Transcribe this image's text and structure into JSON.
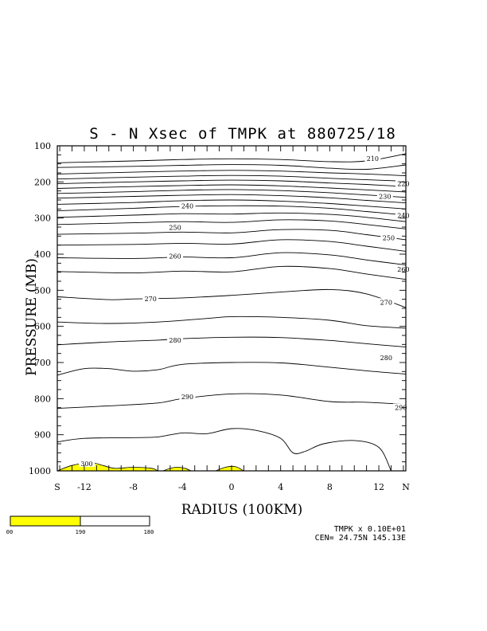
{
  "chart_data": {
    "type": "contour",
    "title": "S - N Xsec of TMPK at 880725/18",
    "xlabel": "RADIUS (100KM)",
    "ylabel": "PRESSURE (MB)",
    "xlim": [
      -14.2,
      14.2
    ],
    "ylim": [
      1000,
      100
    ],
    "y_ticks": [
      100,
      200,
      300,
      400,
      500,
      600,
      700,
      800,
      900,
      1000
    ],
    "x_ticks": [
      {
        "x": -14.2,
        "label": "S"
      },
      {
        "x": -12,
        "label": "-12"
      },
      {
        "x": -8,
        "label": "-8"
      },
      {
        "x": -4,
        "label": "-4"
      },
      {
        "x": 0,
        "label": "0"
      },
      {
        "x": 4,
        "label": "4"
      },
      {
        "x": 8,
        "label": "8"
      },
      {
        "x": 12,
        "label": "12"
      },
      {
        "x": 14.2,
        "label": "N"
      }
    ],
    "contours": [
      {
        "points": [
          [
            -14.2,
            147
          ],
          [
            -8,
            142
          ],
          [
            -4,
            138
          ],
          [
            0,
            136
          ],
          [
            4,
            138
          ],
          [
            8,
            144
          ],
          [
            11,
            142
          ],
          [
            14.2,
            122
          ]
        ]
      },
      {
        "points": [
          [
            -14.2,
            160
          ],
          [
            -8,
            157
          ],
          [
            -4,
            154
          ],
          [
            0,
            152
          ],
          [
            4,
            154
          ],
          [
            8,
            162
          ],
          [
            11,
            165
          ],
          [
            14.2,
            153
          ]
        ]
      },
      {
        "points": [
          [
            -14.2,
            178
          ],
          [
            -8,
            173
          ],
          [
            -4,
            170
          ],
          [
            0,
            168
          ],
          [
            4,
            170
          ],
          [
            8,
            175
          ],
          [
            11,
            178
          ],
          [
            14.2,
            183
          ]
        ]
      },
      {
        "points": [
          [
            -14.2,
            192
          ],
          [
            -8,
            187
          ],
          [
            -4,
            184
          ],
          [
            0,
            182
          ],
          [
            4,
            184
          ],
          [
            8,
            190
          ],
          [
            11,
            194
          ],
          [
            14.2,
            198
          ]
        ]
      },
      {
        "points": [
          [
            -14.2,
            205
          ],
          [
            -8,
            200
          ],
          [
            -4,
            197
          ],
          [
            0,
            195
          ],
          [
            4,
            197
          ],
          [
            8,
            203
          ],
          [
            11,
            207
          ],
          [
            14.2,
            213
          ]
        ]
      },
      {
        "points": [
          [
            -14.2,
            218
          ],
          [
            -8,
            213
          ],
          [
            -4,
            210
          ],
          [
            0,
            208
          ],
          [
            4,
            211
          ],
          [
            8,
            217
          ],
          [
            11,
            222
          ],
          [
            14.2,
            228
          ]
        ]
      },
      {
        "points": [
          [
            -14.2,
            232
          ],
          [
            -8,
            227
          ],
          [
            -4,
            223
          ],
          [
            0,
            221
          ],
          [
            4,
            224
          ],
          [
            8,
            230
          ],
          [
            11,
            236
          ],
          [
            14.2,
            243
          ]
        ]
      },
      {
        "points": [
          [
            -14.2,
            245
          ],
          [
            -8,
            240
          ],
          [
            -4,
            237
          ],
          [
            0,
            235
          ],
          [
            4,
            238
          ],
          [
            8,
            244
          ],
          [
            11,
            251
          ],
          [
            14.2,
            258
          ]
        ]
      },
      {
        "points": [
          [
            -14.2,
            262
          ],
          [
            -8,
            257
          ],
          [
            -4,
            252
          ],
          [
            0,
            250
          ],
          [
            4,
            253
          ],
          [
            8,
            260
          ],
          [
            11,
            267
          ],
          [
            14.2,
            275
          ]
        ]
      },
      {
        "points": [
          [
            -14.2,
            280
          ],
          [
            -8,
            273
          ],
          [
            -4,
            268
          ],
          [
            0,
            266
          ],
          [
            4,
            267
          ],
          [
            8,
            273
          ],
          [
            11,
            282
          ],
          [
            14.2,
            292
          ]
        ]
      },
      {
        "points": [
          [
            -14.2,
            298
          ],
          [
            -8,
            292
          ],
          [
            -4,
            288
          ],
          [
            0,
            289
          ],
          [
            4,
            286
          ],
          [
            8,
            290
          ],
          [
            11,
            298
          ],
          [
            14.2,
            310
          ]
        ]
      },
      {
        "points": [
          [
            -14.2,
            318
          ],
          [
            -8,
            313
          ],
          [
            -4,
            310
          ],
          [
            0,
            312
          ],
          [
            4,
            305
          ],
          [
            8,
            308
          ],
          [
            11,
            318
          ],
          [
            14.2,
            330
          ]
        ]
      },
      {
        "points": [
          [
            -14.2,
            345
          ],
          [
            -8,
            342
          ],
          [
            -4,
            339
          ],
          [
            0,
            341
          ],
          [
            4,
            332
          ],
          [
            8,
            334
          ],
          [
            11,
            346
          ],
          [
            14.2,
            360
          ]
        ]
      },
      {
        "points": [
          [
            -14.2,
            375
          ],
          [
            -8,
            373
          ],
          [
            -4,
            370
          ],
          [
            0,
            372
          ],
          [
            4,
            360
          ],
          [
            8,
            365
          ],
          [
            11,
            378
          ],
          [
            14.2,
            392
          ]
        ]
      },
      {
        "points": [
          [
            -14.2,
            410
          ],
          [
            -8,
            412
          ],
          [
            -4,
            408
          ],
          [
            0,
            410
          ],
          [
            4,
            396
          ],
          [
            8,
            402
          ],
          [
            11,
            416
          ],
          [
            14.2,
            430
          ]
        ]
      },
      {
        "points": [
          [
            -14.2,
            448
          ],
          [
            -8,
            452
          ],
          [
            -4,
            447
          ],
          [
            0,
            449
          ],
          [
            4,
            434
          ],
          [
            8,
            440
          ],
          [
            11,
            455
          ],
          [
            14.2,
            470
          ]
        ]
      },
      {
        "points": [
          [
            -14.2,
            518
          ],
          [
            -10,
            526
          ],
          [
            -8,
            524
          ],
          [
            -4,
            521
          ],
          [
            0,
            514
          ],
          [
            4,
            505
          ],
          [
            8,
            498
          ],
          [
            11,
            510
          ],
          [
            14.2,
            548
          ]
        ]
      },
      {
        "points": [
          [
            -14.2,
            588
          ],
          [
            -10,
            592
          ],
          [
            -6,
            588
          ],
          [
            -2,
            578
          ],
          [
            0,
            573
          ],
          [
            4,
            575
          ],
          [
            8,
            583
          ],
          [
            11,
            598
          ],
          [
            14.2,
            605
          ]
        ]
      },
      {
        "points": [
          [
            -14.2,
            651
          ],
          [
            -10,
            643
          ],
          [
            -6,
            638
          ],
          [
            -4,
            634
          ],
          [
            0,
            630
          ],
          [
            4,
            631
          ],
          [
            8,
            639
          ],
          [
            11,
            648
          ],
          [
            14.2,
            657
          ]
        ]
      },
      {
        "points": [
          [
            -14.2,
            735
          ],
          [
            -12,
            717
          ],
          [
            -10,
            717
          ],
          [
            -8,
            724
          ],
          [
            -6,
            720
          ],
          [
            -4,
            705
          ],
          [
            0,
            700
          ],
          [
            4,
            701
          ],
          [
            8,
            713
          ],
          [
            11,
            723
          ],
          [
            14.2,
            732
          ]
        ]
      },
      {
        "points": [
          [
            -14.2,
            827
          ],
          [
            -10,
            820
          ],
          [
            -6,
            812
          ],
          [
            -4,
            800
          ],
          [
            0,
            787
          ],
          [
            4,
            790
          ],
          [
            8,
            808
          ],
          [
            11,
            810
          ],
          [
            14.2,
            816
          ]
        ]
      },
      {
        "points": [
          [
            -14.2,
            920
          ],
          [
            -12,
            910
          ],
          [
            -8,
            908
          ],
          [
            -6,
            906
          ],
          [
            -4,
            895
          ],
          [
            -2,
            897
          ],
          [
            0,
            883
          ],
          [
            2,
            888
          ],
          [
            4,
            910
          ],
          [
            5,
            950
          ],
          [
            6,
            946
          ],
          [
            7.5,
            925
          ],
          [
            10,
            916
          ],
          [
            12,
            935
          ],
          [
            13,
            1000
          ]
        ]
      }
    ],
    "contour_labels": [
      {
        "text": "210",
        "x": 11.5,
        "y": 135
      },
      {
        "text": "220",
        "x": 14.0,
        "y": 205
      },
      {
        "text": "230",
        "x": 12.5,
        "y": 240
      },
      {
        "text": "240",
        "x": -3.6,
        "y": 266
      },
      {
        "text": "240",
        "x": 14.0,
        "y": 293
      },
      {
        "text": "250",
        "x": -4.6,
        "y": 326
      },
      {
        "text": "250",
        "x": 12.8,
        "y": 355
      },
      {
        "text": "260",
        "x": -4.6,
        "y": 405
      },
      {
        "text": "260",
        "x": 14.0,
        "y": 442
      },
      {
        "text": "270",
        "x": -6.6,
        "y": 524
      },
      {
        "text": "270",
        "x": 12.6,
        "y": 533
      },
      {
        "text": "280",
        "x": -4.6,
        "y": 638
      },
      {
        "text": "280",
        "x": 12.6,
        "y": 687
      },
      {
        "text": "290",
        "x": -3.6,
        "y": 795
      },
      {
        "text": "290",
        "x": 13.8,
        "y": 825
      },
      {
        "text": "300",
        "x": -11.8,
        "y": 980
      }
    ],
    "shaded_regions": [
      {
        "points": [
          [
            -14.2,
            1000
          ],
          [
            -13,
            985
          ],
          [
            -11.5,
            977
          ],
          [
            -10.5,
            985
          ],
          [
            -9.5,
            993
          ],
          [
            -8,
            990
          ],
          [
            -6.5,
            993
          ],
          [
            -6,
            1000
          ]
        ]
      },
      {
        "points": [
          [
            -5.6,
            1000
          ],
          [
            -4.6,
            990
          ],
          [
            -3.8,
            993
          ],
          [
            -3.3,
            1000
          ]
        ]
      },
      {
        "points": [
          [
            -1.3,
            1000
          ],
          [
            -0.5,
            990
          ],
          [
            0.3,
            988
          ],
          [
            1.0,
            1000
          ]
        ]
      }
    ],
    "fill_color": "#ffff00",
    "legend": {
      "colors": [
        "#ffff00",
        "#ffffff"
      ],
      "labels": [
        "00",
        "190",
        "180"
      ]
    },
    "footer": {
      "line1": "TMPK x  0.10E+01",
      "line2": "CEN= 24.75N  145.13E"
    }
  }
}
